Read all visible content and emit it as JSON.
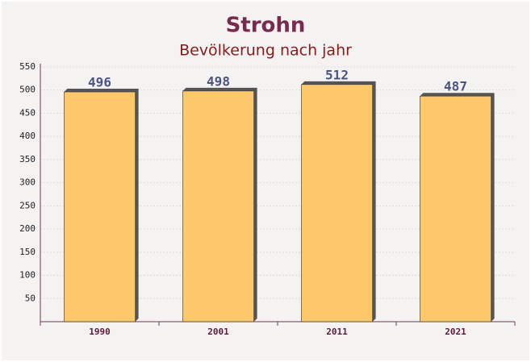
{
  "chart_data": {
    "type": "bar",
    "title": "Strohn",
    "subtitle": "Bevölkerung nach jahr",
    "categories": [
      "1990",
      "2001",
      "2011",
      "2021"
    ],
    "values": [
      496,
      498,
      512,
      487
    ],
    "color": "#fdc35a",
    "ylim": [
      0,
      550
    ],
    "yticks": [
      50,
      100,
      150,
      200,
      250,
      300,
      350,
      400,
      450,
      500,
      550
    ],
    "grid": true
  }
}
